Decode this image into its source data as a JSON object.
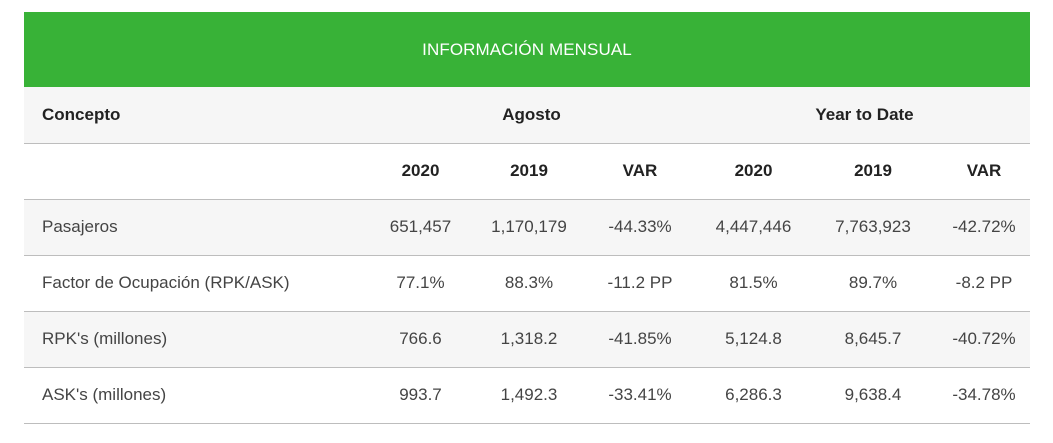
{
  "banner": {
    "title": "INFORMACIÓN MENSUAL"
  },
  "header": {
    "concept_label": "Concepto",
    "group_month": "Agosto",
    "group_ytd": "Year to Date",
    "subcols": [
      "2020",
      "2019",
      "VAR",
      "2020",
      "2019",
      "VAR"
    ]
  },
  "rows": [
    {
      "label": "Pasajeros",
      "values": [
        "651,457",
        "1,170,179",
        "-44.33%",
        "4,447,446",
        "7,763,923",
        "-42.72%"
      ]
    },
    {
      "label": "Factor de Ocupación (RPK/ASK)",
      "values": [
        "77.1%",
        "88.3%",
        "-11.2 PP",
        "81.5%",
        "89.7%",
        "-8.2 PP"
      ]
    },
    {
      "label": "RPK's (millones)",
      "values": [
        "766.6",
        "1,318.2",
        "-41.85%",
        "5,124.8",
        "8,645.7",
        "-40.72%"
      ]
    },
    {
      "label": "ASK's (millones)",
      "values": [
        "993.7",
        "1,492.3",
        "-33.41%",
        "6,286.3",
        "9,638.4",
        "-34.78%"
      ]
    }
  ],
  "colors": {
    "banner": "#38b237",
    "alt_row": "#f6f6f6",
    "border": "#bdbdbd"
  }
}
